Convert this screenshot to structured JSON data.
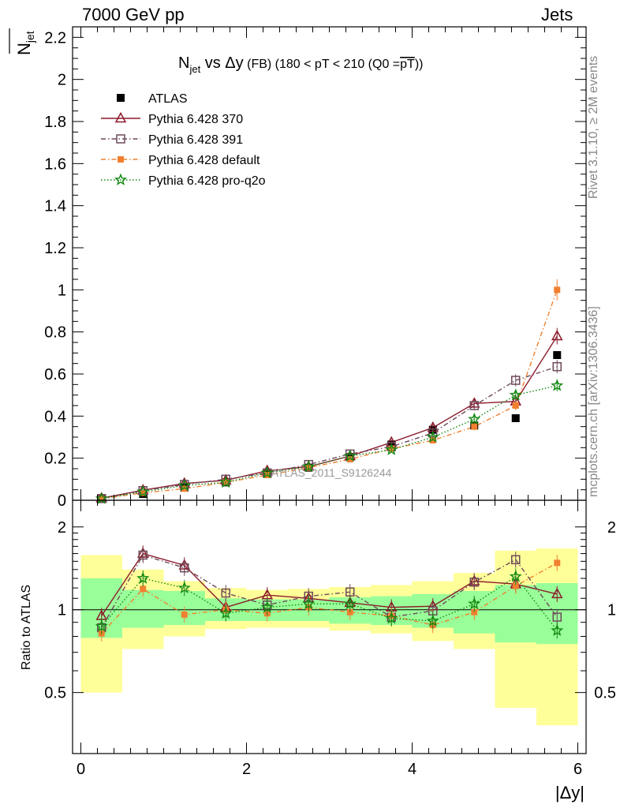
{
  "header": {
    "left": "7000 GeV pp",
    "right": "Jets",
    "side_top": "Rivet 3.1.10, ≥ 2M events",
    "side_bottom": "mcplots.cern.ch [arXiv:1306.3436]"
  },
  "chart_data": [
    {
      "type": "scatter",
      "title_main": "N",
      "title_sub": "jet",
      "title_rest": " vs Δy",
      "title_fb": " (FB)",
      "title_cut": " (180 < pT < 210 (Q0 =",
      "title_cut_over": "pT",
      "title_cut_end": "))",
      "ylabel_main": "N",
      "ylabel_sub": "jet",
      "watermark": "ATLAS_2011_S9126244",
      "ylim": [
        0,
        2.25
      ],
      "xlim": [
        -0.1,
        6.1
      ],
      "yticks": [
        "0",
        "0.2",
        "0.4",
        "0.6",
        "0.8",
        "1",
        "1.2",
        "1.4",
        "1.6",
        "1.8",
        "2",
        "2.2"
      ],
      "legend_position": "top-left",
      "x": [
        0.25,
        0.75,
        1.25,
        1.75,
        2.25,
        2.75,
        3.25,
        3.75,
        4.25,
        4.75,
        5.25,
        5.75
      ],
      "series": [
        {
          "name": "ATLAS",
          "color": "#000000",
          "marker": "filled-square",
          "line": "none",
          "values": [
            0.008,
            0.03,
            0.06,
            0.085,
            0.125,
            0.155,
            0.205,
            0.265,
            0.335,
            0.355,
            0.39,
            0.69
          ]
        },
        {
          "name": "Pythia 6.428 370",
          "color": "#8b1a2b",
          "marker": "open-triangle",
          "line": "solid",
          "values": [
            0.01,
            0.048,
            0.08,
            0.095,
            0.14,
            0.16,
            0.21,
            0.275,
            0.345,
            0.46,
            0.47,
            0.78
          ]
        },
        {
          "name": "Pythia 6.428 391",
          "color": "#6e4a5a",
          "marker": "open-square",
          "line": "dashdot",
          "values": [
            0.008,
            0.046,
            0.075,
            0.1,
            0.13,
            0.17,
            0.22,
            0.255,
            0.32,
            0.45,
            0.57,
            0.635
          ]
        },
        {
          "name": "Pythia 6.428 default",
          "color": "#f08030",
          "marker": "filled-small-square",
          "line": "dashdot",
          "values": [
            0.007,
            0.035,
            0.055,
            0.085,
            0.12,
            0.155,
            0.195,
            0.245,
            0.285,
            0.35,
            0.45,
            1.0
          ]
        },
        {
          "name": "Pythia 6.428 pro-q2o",
          "color": "#118811",
          "marker": "star",
          "line": "dotted",
          "values": [
            0.008,
            0.04,
            0.07,
            0.085,
            0.13,
            0.16,
            0.21,
            0.24,
            0.3,
            0.385,
            0.5,
            0.545
          ]
        }
      ]
    },
    {
      "type": "scatter",
      "ylabel": "Ratio to ATLAS",
      "xlabel": "|Δy|",
      "xlim": [
        -0.1,
        6.1
      ],
      "ylim": [
        0.3,
        2.5
      ],
      "y_scale": "log",
      "yticks": [
        "0.5",
        "1",
        "2"
      ],
      "xticks": [
        "0",
        "2",
        "4",
        "6"
      ],
      "x": [
        0.25,
        0.75,
        1.25,
        1.75,
        2.25,
        2.75,
        3.25,
        3.75,
        4.25,
        4.75,
        5.25,
        5.75
      ],
      "band_bins": [
        [
          0,
          0.5
        ],
        [
          0.5,
          1.0
        ],
        [
          1.0,
          1.5
        ],
        [
          1.5,
          2.0
        ],
        [
          2.0,
          2.5
        ],
        [
          2.5,
          3.0
        ],
        [
          3.0,
          3.5
        ],
        [
          3.5,
          4.0
        ],
        [
          4.0,
          4.5
        ],
        [
          4.5,
          5.0
        ],
        [
          5.0,
          5.5
        ],
        [
          5.5,
          6.0
        ]
      ],
      "band_stat": [
        [
          0.79,
          1.3
        ],
        [
          0.86,
          1.18
        ],
        [
          0.88,
          1.17
        ],
        [
          0.91,
          1.1
        ],
        [
          0.91,
          1.09
        ],
        [
          0.91,
          1.09
        ],
        [
          0.89,
          1.11
        ],
        [
          0.88,
          1.12
        ],
        [
          0.86,
          1.14
        ],
        [
          0.82,
          1.17
        ],
        [
          0.76,
          1.23
        ],
        [
          0.75,
          1.25
        ]
      ],
      "band_total": [
        [
          0.5,
          1.58
        ],
        [
          0.72,
          1.4
        ],
        [
          0.8,
          1.27
        ],
        [
          0.85,
          1.2
        ],
        [
          0.86,
          1.18
        ],
        [
          0.86,
          1.19
        ],
        [
          0.84,
          1.21
        ],
        [
          0.82,
          1.23
        ],
        [
          0.77,
          1.27
        ],
        [
          0.72,
          1.36
        ],
        [
          0.44,
          1.64
        ],
        [
          0.38,
          1.67
        ]
      ],
      "band_stat_color": "#99ff99",
      "band_total_color": "#ffff99",
      "series": [
        {
          "name": "Pythia 6.428 370",
          "color": "#8b1a2b",
          "marker": "open-triangle",
          "line": "solid",
          "values": [
            0.95,
            1.6,
            1.45,
            1.02,
            1.13,
            1.1,
            1.06,
            1.02,
            1.03,
            1.27,
            1.24,
            1.14
          ]
        },
        {
          "name": "Pythia 6.428 391",
          "color": "#6e4a5a",
          "marker": "open-square",
          "line": "dashdot",
          "values": [
            0.86,
            1.58,
            1.42,
            1.15,
            1.04,
            1.12,
            1.16,
            0.94,
            0.99,
            1.26,
            1.52,
            0.94
          ]
        },
        {
          "name": "Pythia 6.428 default",
          "color": "#f08030",
          "marker": "filled-small-square",
          "line": "dashdot",
          "values": [
            0.82,
            1.19,
            0.96,
            1.0,
            0.97,
            1.02,
            0.98,
            0.95,
            0.88,
            0.98,
            1.22,
            1.48
          ]
        },
        {
          "name": "Pythia 6.428 pro-q2o",
          "color": "#118811",
          "marker": "star",
          "line": "dotted",
          "values": [
            0.87,
            1.3,
            1.2,
            0.97,
            1.02,
            1.05,
            1.05,
            0.93,
            0.91,
            1.05,
            1.32,
            0.84
          ]
        }
      ]
    }
  ]
}
